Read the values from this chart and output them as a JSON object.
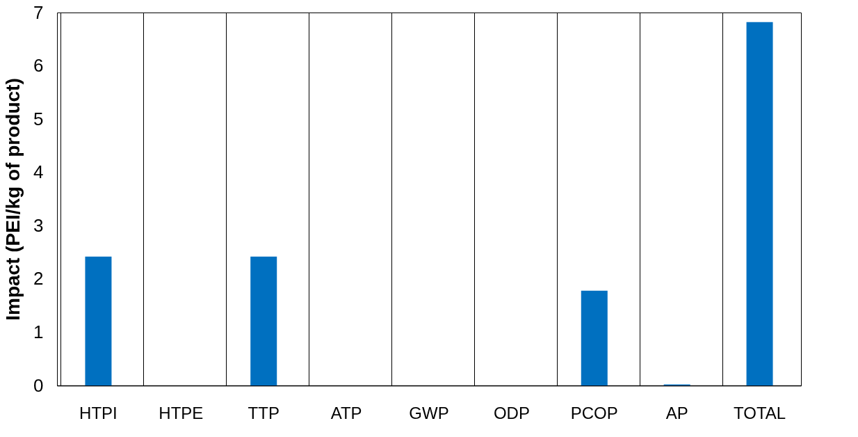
{
  "chart_data": {
    "type": "bar",
    "ylabel": "Impact (PEI/kg of product)",
    "categories": [
      "HTPI",
      "HTPE",
      "TTP",
      "ATP",
      "GWP",
      "ODP",
      "PCOP",
      "AP",
      "TOTAL"
    ],
    "values": [
      2.42,
      0,
      2.42,
      0,
      0,
      0,
      1.78,
      0.02,
      6.82
    ],
    "color": "#0070c0",
    "ylim": [
      0,
      7
    ],
    "yticks": [
      0,
      1,
      2,
      3,
      4,
      5,
      6,
      7
    ],
    "grid": "x"
  }
}
